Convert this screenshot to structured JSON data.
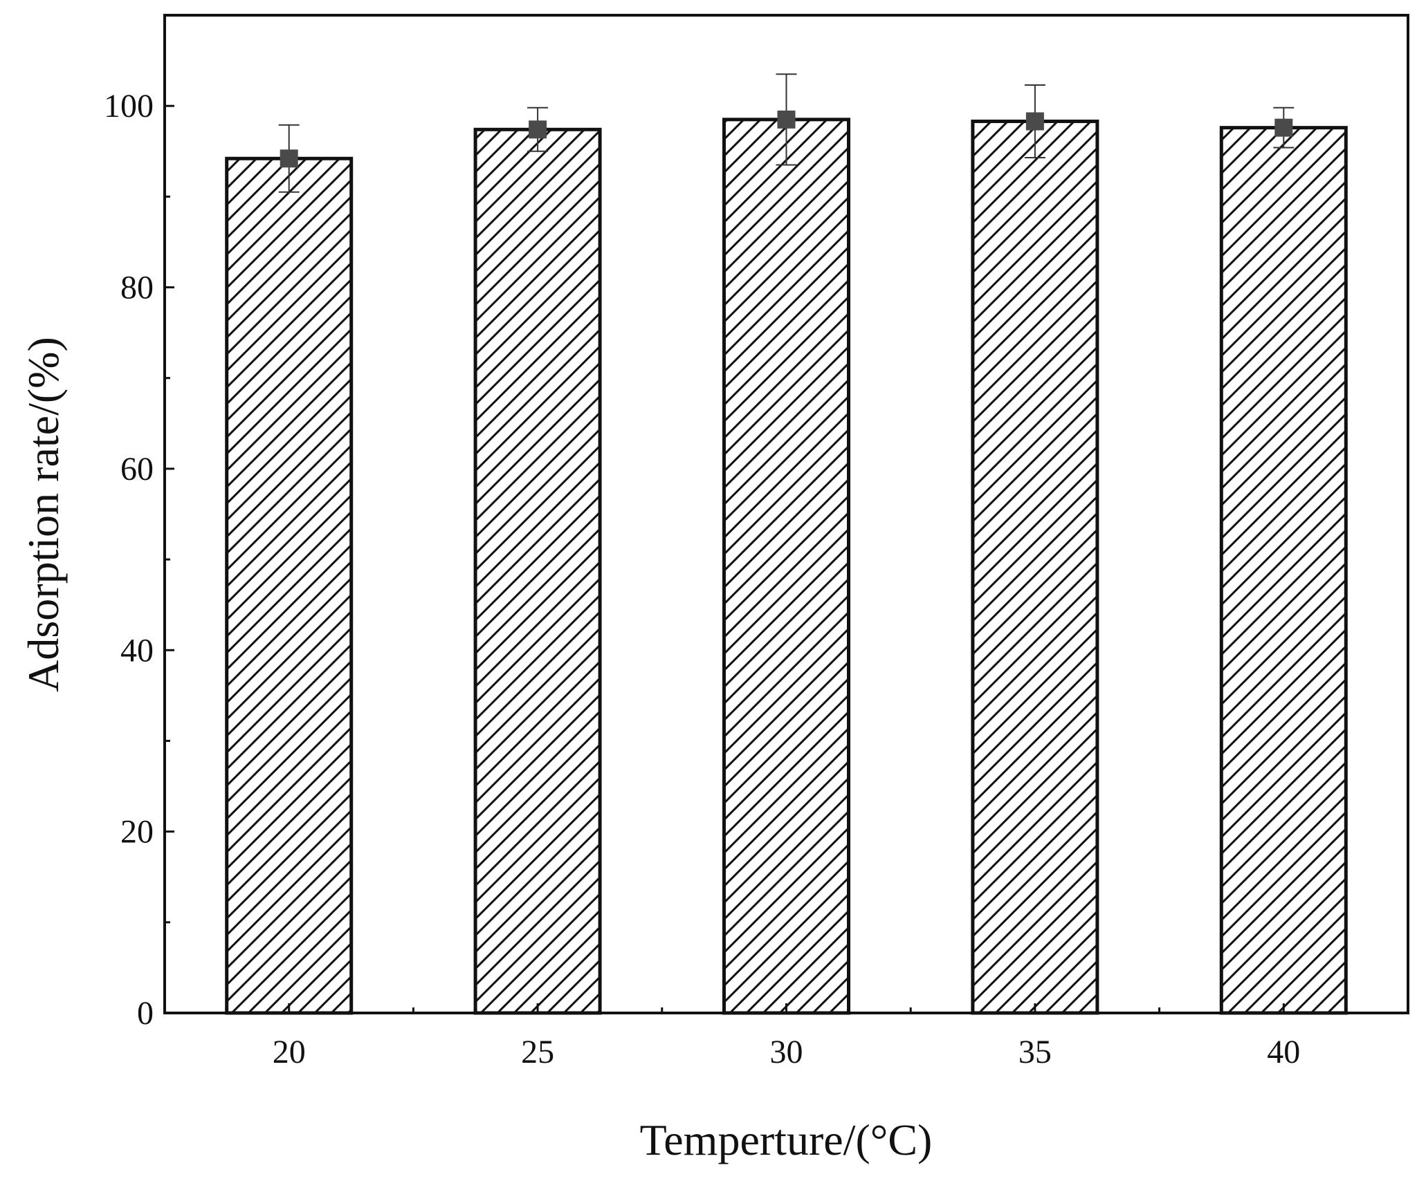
{
  "chart_data": {
    "type": "bar",
    "xlabel": "Temperture/(°C)",
    "ylabel": "Adsorption rate/(%)",
    "categories": [
      "20",
      "25",
      "30",
      "35",
      "40"
    ],
    "values": [
      94.2,
      97.4,
      98.5,
      98.3,
      97.6
    ],
    "errors": [
      3.7,
      2.4,
      5.0,
      4.0,
      2.2
    ],
    "ylim": [
      0,
      110
    ],
    "yticks": [
      0,
      20,
      40,
      60,
      80,
      100
    ],
    "yticks_minor": [
      10,
      30,
      50,
      70,
      90
    ],
    "grid": false,
    "bar_pattern": "diagonal-hatch",
    "colors": {
      "bar_edge": "#111111",
      "hatch": "#111111",
      "marker": "#4a4a4a",
      "axis": "#111111"
    }
  }
}
